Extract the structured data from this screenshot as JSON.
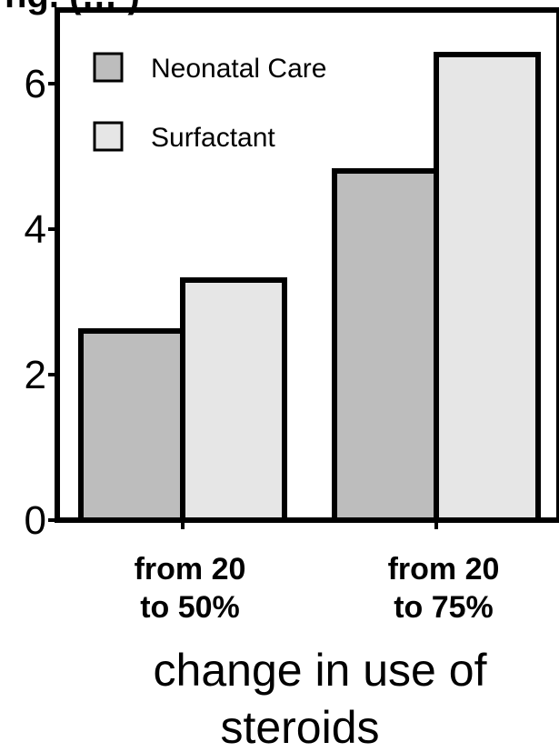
{
  "chart_data": {
    "type": "bar",
    "title": "ng. (… )",
    "categories": [
      [
        "from 20",
        "to 50%"
      ],
      [
        "from 20",
        "to 75%"
      ]
    ],
    "series": [
      {
        "name": "Neonatal Care",
        "values": [
          2.6,
          4.8
        ],
        "color": "#bdbdbd"
      },
      {
        "name": "Surfactant",
        "values": [
          3.3,
          6.4
        ],
        "color": "#e6e6e6"
      }
    ],
    "xlabel": [
      "change in use of",
      "steroids"
    ],
    "ylabel": "",
    "ylim": [
      0,
      7
    ],
    "yticks": [
      0,
      2,
      4,
      6
    ],
    "ytick_labels": [
      "0",
      "2",
      "4",
      "6"
    ],
    "legend_position": "top-left",
    "grid": false
  }
}
